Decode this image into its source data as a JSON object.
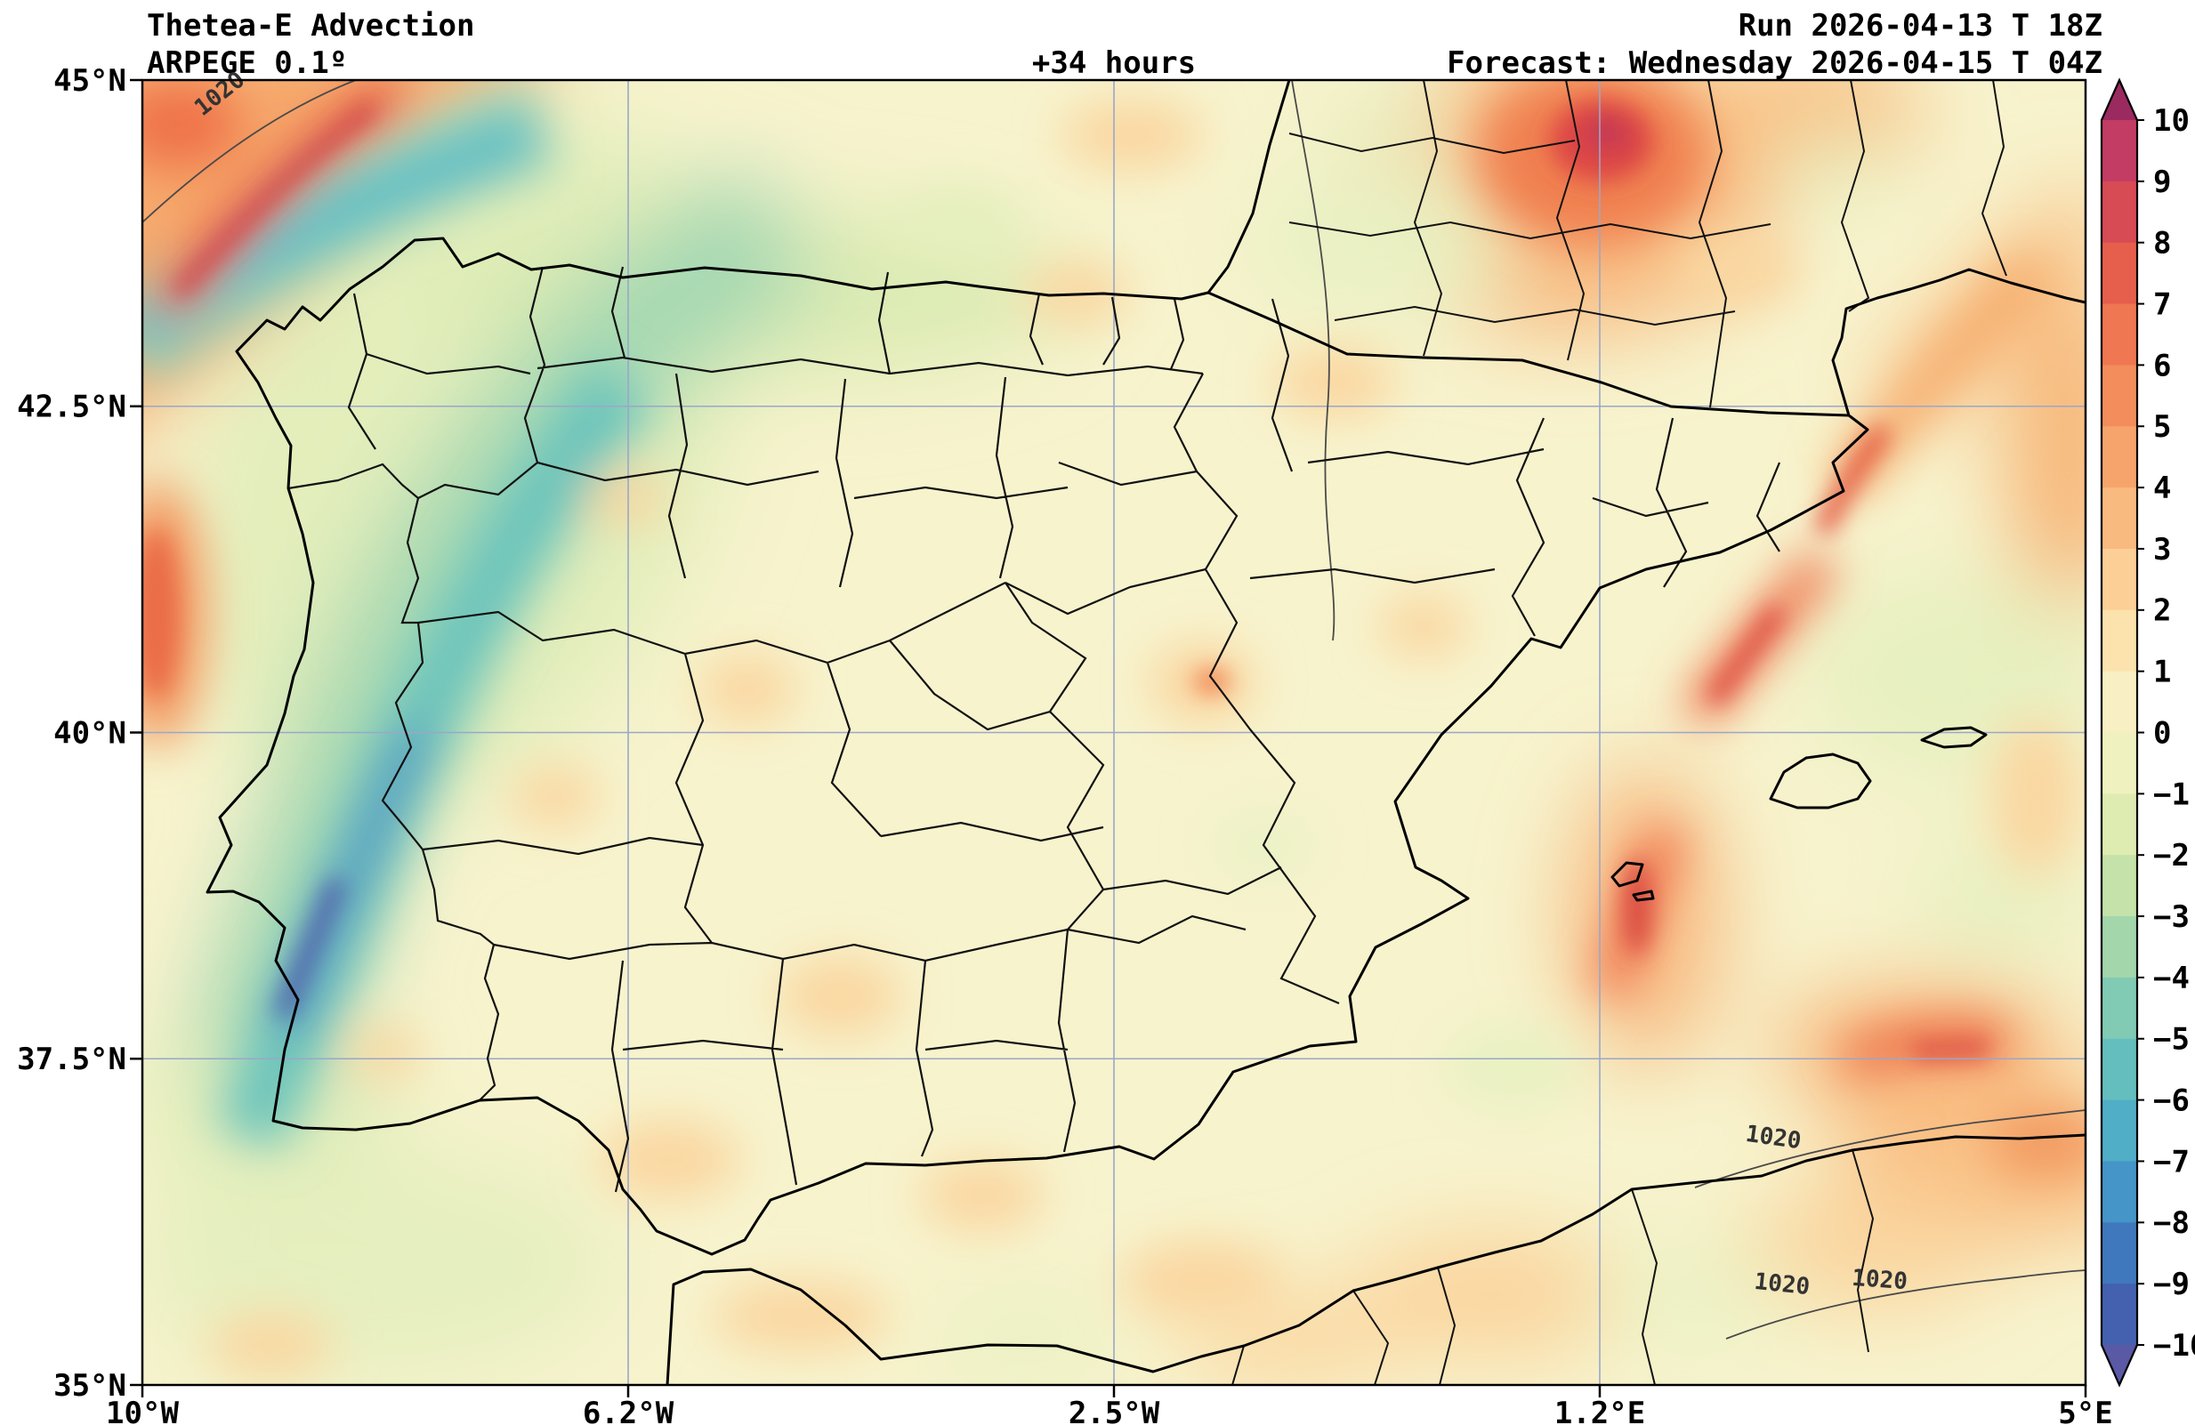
{
  "figure": {
    "title": "Thetea-E Advection",
    "model": "ARPEGE 0.1º",
    "lead_time": "+34 hours",
    "run": "Run 2026-04-13 T 18Z",
    "forecast": "Forecast: Wednesday 2026-04-15 T 04Z"
  },
  "axes": {
    "x_tick_labels": [
      "10°W",
      "6.2°W",
      "2.5°W",
      "1.2°E",
      "5°E"
    ],
    "y_tick_labels": [
      "45°N",
      "42.5°N",
      "40°N",
      "37.5°N",
      "35°N"
    ]
  },
  "colorbar": {
    "tick_labels": [
      "10",
      "9",
      "8",
      "7",
      "6",
      "5",
      "4",
      "3",
      "2",
      "1",
      "0",
      "−1",
      "−2",
      "−3",
      "−4",
      "−5",
      "−6",
      "−7",
      "−8",
      "−9",
      "−10"
    ],
    "band_colors": [
      "#c33c63",
      "#d74b55",
      "#e55f4c",
      "#ef7751",
      "#f38d5c",
      "#f6a46b",
      "#f9ba7f",
      "#fbcf96",
      "#fce3ad",
      "#f8efc4",
      "#eff2bf",
      "#deecb2",
      "#c4e2aa",
      "#a3d6ab",
      "#81cab3",
      "#64bebe",
      "#50aec7",
      "#4595c8",
      "#4078bd",
      "#4361af"
    ],
    "over_color": "#9b2a60",
    "under_color": "#5959a5"
  },
  "map_annotations": {
    "isobar_labels": [
      "1020",
      "1020",
      "1020",
      "1020"
    ]
  },
  "field_colors": {
    "background": "#f7f3cd",
    "warm_advection": "#e45840",
    "cold_advection": "#4f5fa8",
    "gridline": "#9aa7c9"
  }
}
